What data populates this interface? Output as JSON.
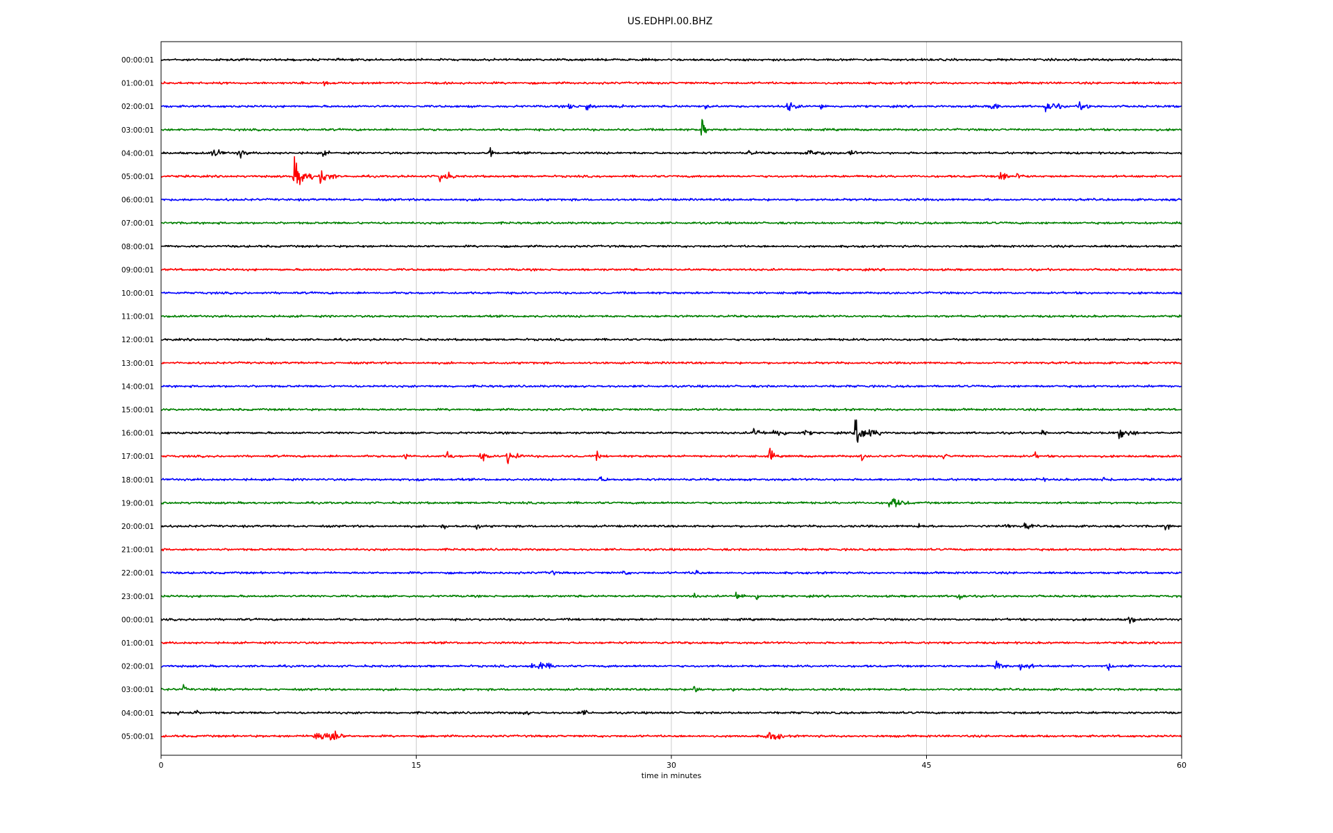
{
  "chart_data": {
    "type": "line",
    "title": "US.EDHPI.00.BHZ",
    "xlabel": "time in minutes",
    "ylabel": "",
    "xlim": [
      0,
      60
    ],
    "x_ticks": [
      0,
      15,
      30,
      45,
      60
    ],
    "x_tick_labels": [
      "0",
      "15",
      "30",
      "45",
      "60"
    ],
    "grid": "vertical",
    "legend": "none",
    "series_colors": [
      "#000000",
      "#ff0000",
      "#0000ff",
      "#008000"
    ],
    "trace_labels": [
      "00:00:01",
      "01:00:01",
      "02:00:01",
      "03:00:01",
      "04:00:01",
      "05:00:01",
      "06:00:01",
      "07:00:01",
      "08:00:01",
      "09:00:01",
      "10:00:01",
      "11:00:01",
      "12:00:01",
      "13:00:01",
      "14:00:01",
      "15:00:01",
      "16:00:01",
      "17:00:01",
      "18:00:01",
      "19:00:01",
      "20:00:01",
      "21:00:01",
      "22:00:01",
      "23:00:01",
      "00:00:01",
      "01:00:01",
      "02:00:01",
      "03:00:01",
      "04:00:01",
      "05:00:01"
    ],
    "events": [
      {
        "trace": 1,
        "minute": 9.6,
        "amp": 6,
        "dur": 0.3
      },
      {
        "trace": 2,
        "minute": 24.0,
        "amp": 7,
        "dur": 0.5
      },
      {
        "trace": 2,
        "minute": 25.0,
        "amp": 9,
        "dur": 0.6
      },
      {
        "trace": 2,
        "minute": 27.0,
        "amp": 10,
        "dur": 0.2
      },
      {
        "trace": 2,
        "minute": 32.0,
        "amp": 6,
        "dur": 0.4
      },
      {
        "trace": 2,
        "minute": 36.8,
        "amp": 12,
        "dur": 0.8
      },
      {
        "trace": 2,
        "minute": 38.8,
        "amp": 8,
        "dur": 0.3
      },
      {
        "trace": 2,
        "minute": 48.8,
        "amp": 9,
        "dur": 0.6
      },
      {
        "trace": 2,
        "minute": 52.0,
        "amp": 14,
        "dur": 1.0
      },
      {
        "trace": 2,
        "minute": 54.0,
        "amp": 11,
        "dur": 0.7
      },
      {
        "trace": 3,
        "minute": 31.8,
        "amp": 30,
        "dur": 0.25
      },
      {
        "trace": 4,
        "minute": 3.0,
        "amp": 10,
        "dur": 0.8
      },
      {
        "trace": 4,
        "minute": 4.5,
        "amp": 12,
        "dur": 0.6
      },
      {
        "trace": 4,
        "minute": 9.5,
        "amp": 6,
        "dur": 0.4
      },
      {
        "trace": 4,
        "minute": 19.3,
        "amp": 20,
        "dur": 0.2
      },
      {
        "trace": 4,
        "minute": 34.5,
        "amp": 5,
        "dur": 0.5
      },
      {
        "trace": 4,
        "minute": 38.0,
        "amp": 6,
        "dur": 1.5
      },
      {
        "trace": 4,
        "minute": 40.5,
        "amp": 6,
        "dur": 0.6
      },
      {
        "trace": 5,
        "minute": 7.8,
        "amp": 30,
        "dur": 1.2
      },
      {
        "trace": 5,
        "minute": 9.3,
        "amp": 16,
        "dur": 1.0
      },
      {
        "trace": 5,
        "minute": 16.3,
        "amp": 16,
        "dur": 1.0
      },
      {
        "trace": 5,
        "minute": 49.3,
        "amp": 12,
        "dur": 0.6
      },
      {
        "trace": 5,
        "minute": 50.3,
        "amp": 14,
        "dur": 0.4
      },
      {
        "trace": 16,
        "minute": 34.8,
        "amp": 10,
        "dur": 0.8
      },
      {
        "trace": 16,
        "minute": 36.0,
        "amp": 10,
        "dur": 1.0
      },
      {
        "trace": 16,
        "minute": 37.8,
        "amp": 6,
        "dur": 0.5
      },
      {
        "trace": 16,
        "minute": 40.8,
        "amp": 26,
        "dur": 1.5
      },
      {
        "trace": 16,
        "minute": 51.8,
        "amp": 6,
        "dur": 0.4
      },
      {
        "trace": 16,
        "minute": 56.3,
        "amp": 10,
        "dur": 1.2
      },
      {
        "trace": 17,
        "minute": 14.3,
        "amp": 6,
        "dur": 0.4
      },
      {
        "trace": 17,
        "minute": 16.8,
        "amp": 10,
        "dur": 0.4
      },
      {
        "trace": 17,
        "minute": 18.8,
        "amp": 8,
        "dur": 0.6
      },
      {
        "trace": 17,
        "minute": 20.3,
        "amp": 14,
        "dur": 1.0
      },
      {
        "trace": 17,
        "minute": 25.6,
        "amp": 8,
        "dur": 0.3
      },
      {
        "trace": 17,
        "minute": 35.8,
        "amp": 16,
        "dur": 0.3
      },
      {
        "trace": 17,
        "minute": 41.2,
        "amp": 8,
        "dur": 0.3
      },
      {
        "trace": 17,
        "minute": 46.0,
        "amp": 6,
        "dur": 0.3
      },
      {
        "trace": 17,
        "minute": 51.3,
        "amp": 8,
        "dur": 0.3
      },
      {
        "trace": 18,
        "minute": 15.0,
        "amp": 6,
        "dur": 0.5
      },
      {
        "trace": 18,
        "minute": 25.8,
        "amp": 6,
        "dur": 0.5
      },
      {
        "trace": 18,
        "minute": 51.5,
        "amp": 6,
        "dur": 0.5
      },
      {
        "trace": 18,
        "minute": 55.3,
        "amp": 6,
        "dur": 0.8
      },
      {
        "trace": 19,
        "minute": 42.8,
        "amp": 12,
        "dur": 1.2
      },
      {
        "trace": 20,
        "minute": 16.5,
        "amp": 5,
        "dur": 0.4
      },
      {
        "trace": 20,
        "minute": 18.5,
        "amp": 8,
        "dur": 0.3
      },
      {
        "trace": 20,
        "minute": 44.5,
        "amp": 6,
        "dur": 0.4
      },
      {
        "trace": 20,
        "minute": 49.6,
        "amp": 9,
        "dur": 0.4
      },
      {
        "trace": 20,
        "minute": 50.8,
        "amp": 8,
        "dur": 0.5
      },
      {
        "trace": 20,
        "minute": 59.0,
        "amp": 6,
        "dur": 0.6
      },
      {
        "trace": 22,
        "minute": 22.8,
        "amp": 6,
        "dur": 0.5
      },
      {
        "trace": 22,
        "minute": 27.2,
        "amp": 5,
        "dur": 0.4
      },
      {
        "trace": 22,
        "minute": 31.4,
        "amp": 9,
        "dur": 0.4
      },
      {
        "trace": 23,
        "minute": 31.2,
        "amp": 7,
        "dur": 0.4
      },
      {
        "trace": 23,
        "minute": 33.8,
        "amp": 8,
        "dur": 0.6
      },
      {
        "trace": 23,
        "minute": 35.0,
        "amp": 7,
        "dur": 0.3
      },
      {
        "trace": 23,
        "minute": 46.8,
        "amp": 8,
        "dur": 0.6
      },
      {
        "trace": 24,
        "minute": 56.9,
        "amp": 12,
        "dur": 0.4
      },
      {
        "trace": 26,
        "minute": 21.8,
        "amp": 12,
        "dur": 1.5
      },
      {
        "trace": 26,
        "minute": 49.0,
        "amp": 14,
        "dur": 0.8
      },
      {
        "trace": 26,
        "minute": 50.5,
        "amp": 10,
        "dur": 0.8
      },
      {
        "trace": 26,
        "minute": 55.5,
        "amp": 12,
        "dur": 0.5
      },
      {
        "trace": 26,
        "minute": 57.0,
        "amp": 9,
        "dur": 0.3
      },
      {
        "trace": 27,
        "minute": 1.3,
        "amp": 7,
        "dur": 0.3
      },
      {
        "trace": 27,
        "minute": 3.0,
        "amp": 5,
        "dur": 0.2
      },
      {
        "trace": 27,
        "minute": 31.3,
        "amp": 11,
        "dur": 0.5
      },
      {
        "trace": 27,
        "minute": 33.5,
        "amp": 5,
        "dur": 0.3
      },
      {
        "trace": 28,
        "minute": 1.0,
        "amp": 5,
        "dur": 0.3
      },
      {
        "trace": 28,
        "minute": 2.0,
        "amp": 7,
        "dur": 0.2
      },
      {
        "trace": 28,
        "minute": 21.3,
        "amp": 6,
        "dur": 0.4
      },
      {
        "trace": 28,
        "minute": 24.8,
        "amp": 7,
        "dur": 0.3
      },
      {
        "trace": 29,
        "minute": 9.0,
        "amp": 12,
        "dur": 1.5
      },
      {
        "trace": 29,
        "minute": 10.0,
        "amp": 16,
        "dur": 0.8
      },
      {
        "trace": 29,
        "minute": 35.5,
        "amp": 14,
        "dur": 1.2
      }
    ]
  }
}
